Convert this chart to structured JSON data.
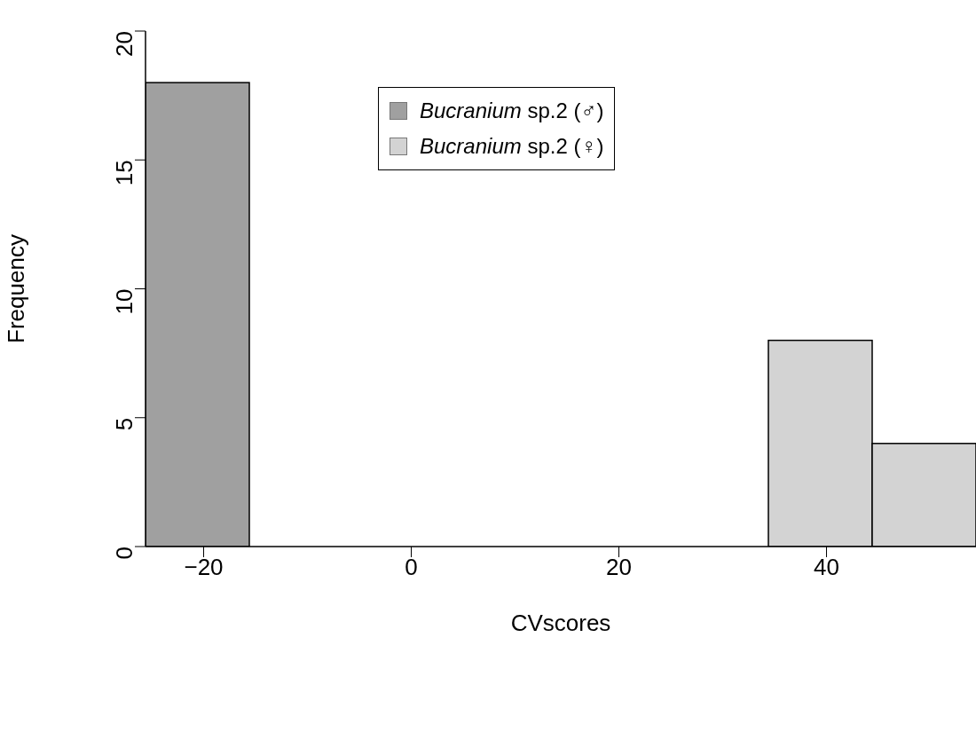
{
  "chart_data": {
    "type": "histogram",
    "xlabel": "CVscores",
    "ylabel": "Frequency",
    "bins": [
      -25.6,
      -15.6,
      -5.6,
      4.4,
      14.4,
      24.4,
      34.4,
      44.4,
      54.4
    ],
    "series": [
      {
        "name": "Bucranium sp.2 (♂)",
        "color": "#a0a0a0",
        "values": [
          18,
          0,
          0,
          0,
          0,
          0,
          0,
          0
        ]
      },
      {
        "name": "Bucranium sp.2 (♀)",
        "color": "#d3d3d3",
        "values": [
          0,
          0,
          0,
          0,
          0,
          0,
          8,
          4
        ]
      }
    ],
    "xlim": [
      -25.6,
      54.4
    ],
    "xticks": [
      -20,
      0,
      20,
      40
    ],
    "ylim": [
      0,
      20
    ],
    "yticks": [
      0,
      5,
      10,
      15,
      20
    ],
    "grid": false,
    "legend": "top"
  }
}
